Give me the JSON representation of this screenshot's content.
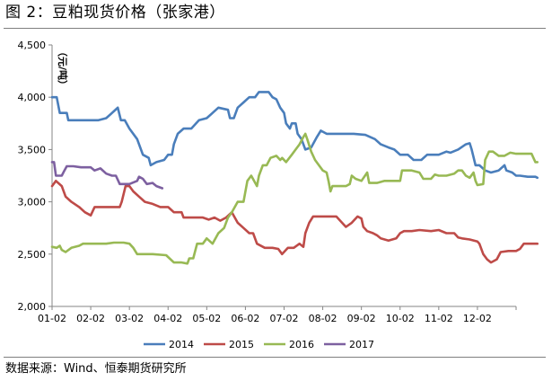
{
  "figure": {
    "title": "图 2：豆粕现货价格（张家港）",
    "source": "数据来源：Wind、恒泰期货研究所"
  },
  "chart_data": {
    "type": "line",
    "ylabel": "（元/吨）",
    "ylim": [
      2000,
      4500
    ],
    "yticks": [
      "2,000",
      "2,500",
      "3,000",
      "3,500",
      "4,000",
      "4,500"
    ],
    "ytick_values": [
      2000,
      2500,
      3000,
      3500,
      4000,
      4500
    ],
    "xticks": [
      "01-02",
      "02-02",
      "03-02",
      "04-02",
      "05-02",
      "06-02",
      "07-02",
      "08-02",
      "09-02",
      "10-02",
      "11-02",
      "12-02"
    ],
    "xlim_months": [
      0,
      12
    ],
    "grid": false,
    "legend": "bottom",
    "series": [
      {
        "name": "2014",
        "color": "#4a7ebb",
        "points": [
          [
            0,
            4000
          ],
          [
            0.12,
            4000
          ],
          [
            0.2,
            3850
          ],
          [
            0.38,
            3850
          ],
          [
            0.42,
            3780
          ],
          [
            0.8,
            3780
          ],
          [
            1.2,
            3780
          ],
          [
            1.4,
            3800
          ],
          [
            1.55,
            3850
          ],
          [
            1.7,
            3900
          ],
          [
            1.78,
            3780
          ],
          [
            1.88,
            3780
          ],
          [
            2.0,
            3700
          ],
          [
            2.2,
            3600
          ],
          [
            2.35,
            3450
          ],
          [
            2.5,
            3420
          ],
          [
            2.55,
            3350
          ],
          [
            2.7,
            3380
          ],
          [
            2.9,
            3400
          ],
          [
            3.0,
            3450
          ],
          [
            3.1,
            3450
          ],
          [
            3.15,
            3550
          ],
          [
            3.25,
            3650
          ],
          [
            3.4,
            3700
          ],
          [
            3.6,
            3700
          ],
          [
            3.8,
            3780
          ],
          [
            4.0,
            3800
          ],
          [
            4.15,
            3850
          ],
          [
            4.3,
            3900
          ],
          [
            4.55,
            3880
          ],
          [
            4.6,
            3800
          ],
          [
            4.7,
            3800
          ],
          [
            4.8,
            3900
          ],
          [
            4.95,
            3950
          ],
          [
            5.1,
            4000
          ],
          [
            5.25,
            4000
          ],
          [
            5.35,
            4050
          ],
          [
            5.6,
            4050
          ],
          [
            5.7,
            4000
          ],
          [
            5.8,
            3980
          ],
          [
            5.9,
            3900
          ],
          [
            6.0,
            3850
          ],
          [
            6.05,
            3750
          ],
          [
            6.15,
            3700
          ],
          [
            6.2,
            3750
          ],
          [
            6.3,
            3750
          ],
          [
            6.35,
            3650
          ],
          [
            6.45,
            3600
          ],
          [
            6.55,
            3500
          ],
          [
            6.7,
            3520
          ],
          [
            6.85,
            3620
          ],
          [
            6.95,
            3680
          ],
          [
            7.1,
            3650
          ],
          [
            7.5,
            3650
          ],
          [
            7.8,
            3650
          ],
          [
            8.1,
            3640
          ],
          [
            8.35,
            3600
          ],
          [
            8.5,
            3550
          ],
          [
            8.7,
            3520
          ],
          [
            8.85,
            3500
          ],
          [
            9.0,
            3450
          ],
          [
            9.2,
            3450
          ],
          [
            9.35,
            3400
          ],
          [
            9.55,
            3400
          ],
          [
            9.7,
            3450
          ],
          [
            10.0,
            3450
          ],
          [
            10.2,
            3480
          ],
          [
            10.3,
            3470
          ],
          [
            10.5,
            3500
          ],
          [
            10.7,
            3550
          ],
          [
            10.8,
            3560
          ],
          [
            10.85,
            3500
          ],
          [
            10.95,
            3350
          ],
          [
            11.05,
            3350
          ],
          [
            11.2,
            3300
          ],
          [
            11.35,
            3280
          ],
          [
            11.55,
            3300
          ],
          [
            11.7,
            3350
          ],
          [
            11.75,
            3300
          ],
          [
            11.9,
            3280
          ],
          [
            12.0,
            3250
          ],
          [
            12.1,
            3250
          ],
          [
            12.3,
            3240
          ],
          [
            12.45,
            3240
          ],
          [
            12.5,
            3240
          ],
          [
            12.55,
            3230
          ]
        ]
      },
      {
        "name": "2015",
        "color": "#be4b48",
        "points": [
          [
            0,
            3150
          ],
          [
            0.1,
            3200
          ],
          [
            0.25,
            3150
          ],
          [
            0.35,
            3050
          ],
          [
            0.5,
            3000
          ],
          [
            0.7,
            2950
          ],
          [
            0.85,
            2900
          ],
          [
            1.0,
            2870
          ],
          [
            1.1,
            2950
          ],
          [
            1.25,
            2950
          ],
          [
            1.5,
            2950
          ],
          [
            1.75,
            2950
          ],
          [
            1.8,
            3000
          ],
          [
            1.9,
            3150
          ],
          [
            2.0,
            3150
          ],
          [
            2.1,
            3100
          ],
          [
            2.25,
            3050
          ],
          [
            2.4,
            3000
          ],
          [
            2.6,
            2980
          ],
          [
            2.8,
            2950
          ],
          [
            3.0,
            2950
          ],
          [
            3.15,
            2900
          ],
          [
            3.35,
            2900
          ],
          [
            3.4,
            2850
          ],
          [
            3.7,
            2850
          ],
          [
            3.9,
            2850
          ],
          [
            4.05,
            2830
          ],
          [
            4.2,
            2850
          ],
          [
            4.35,
            2820
          ],
          [
            4.5,
            2850
          ],
          [
            4.65,
            2900
          ],
          [
            4.8,
            2800
          ],
          [
            4.95,
            2750
          ],
          [
            5.1,
            2700
          ],
          [
            5.2,
            2700
          ],
          [
            5.3,
            2600
          ],
          [
            5.5,
            2560
          ],
          [
            5.7,
            2560
          ],
          [
            5.85,
            2550
          ],
          [
            5.95,
            2500
          ],
          [
            6.1,
            2560
          ],
          [
            6.25,
            2560
          ],
          [
            6.4,
            2600
          ],
          [
            6.5,
            2570
          ],
          [
            6.55,
            2700
          ],
          [
            6.65,
            2800
          ],
          [
            6.75,
            2860
          ],
          [
            6.9,
            2860
          ],
          [
            7.1,
            2860
          ],
          [
            7.35,
            2860
          ],
          [
            7.5,
            2800
          ],
          [
            7.6,
            2760
          ],
          [
            7.75,
            2800
          ],
          [
            7.9,
            2860
          ],
          [
            8.0,
            2840
          ],
          [
            8.05,
            2760
          ],
          [
            8.15,
            2720
          ],
          [
            8.3,
            2700
          ],
          [
            8.4,
            2680
          ],
          [
            8.5,
            2650
          ],
          [
            8.7,
            2630
          ],
          [
            8.9,
            2650
          ],
          [
            9.0,
            2700
          ],
          [
            9.1,
            2720
          ],
          [
            9.3,
            2720
          ],
          [
            9.5,
            2730
          ],
          [
            9.8,
            2720
          ],
          [
            10.0,
            2730
          ],
          [
            10.2,
            2700
          ],
          [
            10.4,
            2700
          ],
          [
            10.5,
            2660
          ],
          [
            10.6,
            2650
          ],
          [
            10.8,
            2640
          ],
          [
            11.0,
            2620
          ],
          [
            11.05,
            2600
          ],
          [
            11.15,
            2500
          ],
          [
            11.25,
            2450
          ],
          [
            11.35,
            2420
          ],
          [
            11.5,
            2450
          ],
          [
            11.6,
            2520
          ],
          [
            11.8,
            2530
          ],
          [
            12.0,
            2530
          ],
          [
            12.1,
            2550
          ],
          [
            12.2,
            2600
          ],
          [
            12.35,
            2600
          ],
          [
            12.55,
            2600
          ]
        ]
      },
      {
        "name": "2016",
        "color": "#98b954",
        "points": [
          [
            0,
            2570
          ],
          [
            0.12,
            2560
          ],
          [
            0.2,
            2580
          ],
          [
            0.25,
            2540
          ],
          [
            0.35,
            2520
          ],
          [
            0.5,
            2560
          ],
          [
            0.7,
            2580
          ],
          [
            0.8,
            2600
          ],
          [
            1.0,
            2600
          ],
          [
            1.2,
            2600
          ],
          [
            1.4,
            2600
          ],
          [
            1.6,
            2610
          ],
          [
            1.85,
            2610
          ],
          [
            2.0,
            2600
          ],
          [
            2.1,
            2560
          ],
          [
            2.2,
            2500
          ],
          [
            2.6,
            2500
          ],
          [
            2.95,
            2490
          ],
          [
            3.15,
            2420
          ],
          [
            3.35,
            2420
          ],
          [
            3.5,
            2410
          ],
          [
            3.55,
            2460
          ],
          [
            3.65,
            2460
          ],
          [
            3.75,
            2600
          ],
          [
            3.9,
            2600
          ],
          [
            4.0,
            2650
          ],
          [
            4.15,
            2600
          ],
          [
            4.3,
            2700
          ],
          [
            4.45,
            2750
          ],
          [
            4.55,
            2850
          ],
          [
            4.65,
            2900
          ],
          [
            4.8,
            3000
          ],
          [
            4.95,
            3000
          ],
          [
            5.05,
            3200
          ],
          [
            5.15,
            3250
          ],
          [
            5.3,
            3150
          ],
          [
            5.35,
            3250
          ],
          [
            5.45,
            3350
          ],
          [
            5.55,
            3350
          ],
          [
            5.65,
            3420
          ],
          [
            5.8,
            3440
          ],
          [
            5.9,
            3400
          ],
          [
            5.95,
            3420
          ],
          [
            6.05,
            3380
          ],
          [
            6.2,
            3450
          ],
          [
            6.3,
            3500
          ],
          [
            6.4,
            3550
          ],
          [
            6.5,
            3620
          ],
          [
            6.55,
            3650
          ],
          [
            6.6,
            3600
          ],
          [
            6.7,
            3480
          ],
          [
            6.8,
            3400
          ],
          [
            6.9,
            3350
          ],
          [
            7.0,
            3300
          ],
          [
            7.1,
            3280
          ],
          [
            7.15,
            3200
          ],
          [
            7.2,
            3100
          ],
          [
            7.25,
            3150
          ],
          [
            7.4,
            3150
          ],
          [
            7.5,
            3150
          ],
          [
            7.6,
            3150
          ],
          [
            7.7,
            3170
          ],
          [
            7.75,
            3250
          ],
          [
            7.85,
            3220
          ],
          [
            8.0,
            3200
          ],
          [
            8.15,
            3280
          ],
          [
            8.2,
            3180
          ],
          [
            8.4,
            3180
          ],
          [
            8.6,
            3200
          ],
          [
            8.8,
            3200
          ],
          [
            9.0,
            3200
          ],
          [
            9.05,
            3300
          ],
          [
            9.3,
            3300
          ],
          [
            9.5,
            3280
          ],
          [
            9.6,
            3220
          ],
          [
            9.8,
            3220
          ],
          [
            9.9,
            3260
          ],
          [
            10.0,
            3250
          ],
          [
            10.2,
            3250
          ],
          [
            10.4,
            3270
          ],
          [
            10.5,
            3300
          ],
          [
            10.6,
            3300
          ],
          [
            10.7,
            3250
          ],
          [
            10.8,
            3230
          ],
          [
            10.9,
            3280
          ],
          [
            10.95,
            3200
          ],
          [
            11.0,
            3160
          ],
          [
            11.15,
            3170
          ],
          [
            11.2,
            3400
          ],
          [
            11.3,
            3480
          ],
          [
            11.4,
            3480
          ],
          [
            11.55,
            3440
          ],
          [
            11.7,
            3440
          ],
          [
            11.85,
            3470
          ],
          [
            12.0,
            3460
          ],
          [
            12.2,
            3460
          ],
          [
            12.4,
            3460
          ],
          [
            12.5,
            3380
          ],
          [
            12.55,
            3380
          ]
        ]
      },
      {
        "name": "2017",
        "color": "#7d60a0",
        "points": [
          [
            0,
            3380
          ],
          [
            0.05,
            3380
          ],
          [
            0.1,
            3250
          ],
          [
            0.25,
            3250
          ],
          [
            0.32,
            3300
          ],
          [
            0.38,
            3340
          ],
          [
            0.55,
            3340
          ],
          [
            0.75,
            3330
          ],
          [
            1.0,
            3330
          ],
          [
            1.1,
            3300
          ],
          [
            1.25,
            3320
          ],
          [
            1.4,
            3270
          ],
          [
            1.55,
            3250
          ],
          [
            1.65,
            3250
          ],
          [
            1.75,
            3170
          ],
          [
            2.0,
            3170
          ],
          [
            2.2,
            3200
          ],
          [
            2.25,
            3240
          ],
          [
            2.35,
            3220
          ],
          [
            2.45,
            3170
          ],
          [
            2.6,
            3180
          ],
          [
            2.7,
            3150
          ],
          [
            2.85,
            3130
          ]
        ]
      }
    ]
  }
}
